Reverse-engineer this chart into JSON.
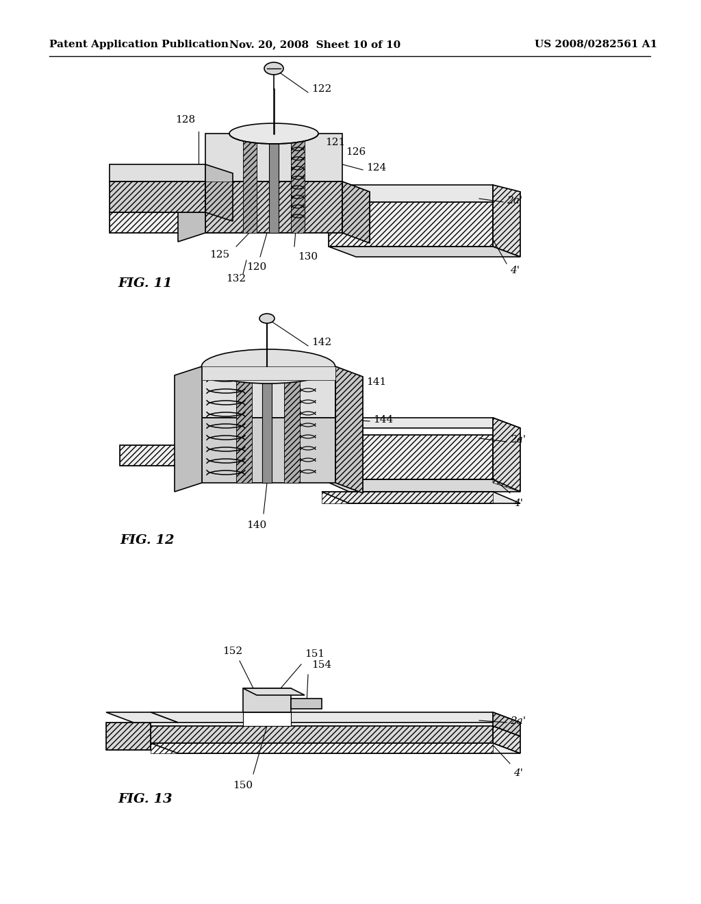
{
  "bg_color": "#ffffff",
  "header_left": "Patent Application Publication",
  "header_mid": "Nov. 20, 2008  Sheet 10 of 10",
  "header_right": "US 2008/0282561 A1",
  "header_fontsize": 11,
  "fig_label_fontsize": 14,
  "annotation_fontsize": 11,
  "line_color": "#000000",
  "fig11_label": "FIG. 11",
  "fig12_label": "FIG. 12",
  "fig13_label": "FIG. 13"
}
